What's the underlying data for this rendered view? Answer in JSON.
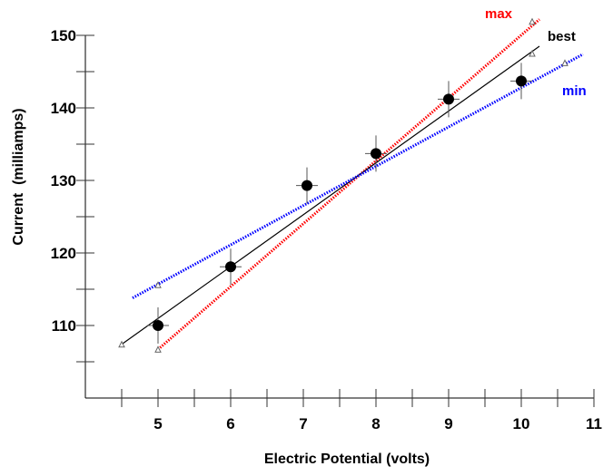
{
  "chart_data": {
    "type": "scatter",
    "title": "",
    "xlabel": "Electric Potential (volts)",
    "ylabel": "Current  (milliamps)",
    "xlim": [
      4,
      11
    ],
    "ylim": [
      100,
      150
    ],
    "grid": false,
    "x_ticks": [
      5,
      6,
      7,
      8,
      9,
      10,
      11
    ],
    "x_minor_ticks": [
      4.5,
      5,
      5.5,
      6,
      6.5,
      7,
      7.5,
      8,
      8.5,
      9,
      9.5,
      10,
      10.5,
      11
    ],
    "y_ticks": [
      110,
      120,
      130,
      140,
      150
    ],
    "y_minor_ticks": [
      105,
      110,
      115,
      120,
      125,
      130,
      135,
      140,
      145,
      150
    ],
    "points": [
      {
        "x": 5.0,
        "y": 110.0,
        "xerr": 0.15,
        "yerr": 2.5
      },
      {
        "x": 6.0,
        "y": 118.1,
        "xerr": 0.15,
        "yerr": 2.5
      },
      {
        "x": 7.05,
        "y": 129.3,
        "xerr": 0.15,
        "yerr": 2.5
      },
      {
        "x": 8.0,
        "y": 133.7,
        "xerr": 0.15,
        "yerr": 2.5
      },
      {
        "x": 9.0,
        "y": 141.2,
        "xerr": 0.15,
        "yerr": 2.5
      },
      {
        "x": 10.0,
        "y": 143.7,
        "xerr": 0.15,
        "yerr": 2.5
      }
    ],
    "series": [
      {
        "name": "max",
        "style": "dotted",
        "color": "#ff0000",
        "x": [
          5.0,
          10.25
        ],
        "y": [
          106.7,
          152.2
        ],
        "markers": [
          [
            5.0,
            106.7
          ],
          [
            10.15,
            151.9
          ]
        ]
      },
      {
        "name": "best",
        "style": "solid",
        "color": "#000000",
        "x": [
          4.5,
          10.25
        ],
        "y": [
          107.4,
          148.5
        ],
        "markers": [
          [
            4.5,
            107.4
          ],
          [
            10.15,
            147.5
          ]
        ]
      },
      {
        "name": "min",
        "style": "dotted",
        "color": "#0000ff",
        "x": [
          4.65,
          10.85
        ],
        "y": [
          113.8,
          147.4
        ],
        "markers": [
          [
            5.0,
            115.6
          ],
          [
            10.6,
            146.2
          ]
        ]
      }
    ],
    "labels": {
      "max": "max",
      "best": "best",
      "min": "min"
    }
  }
}
